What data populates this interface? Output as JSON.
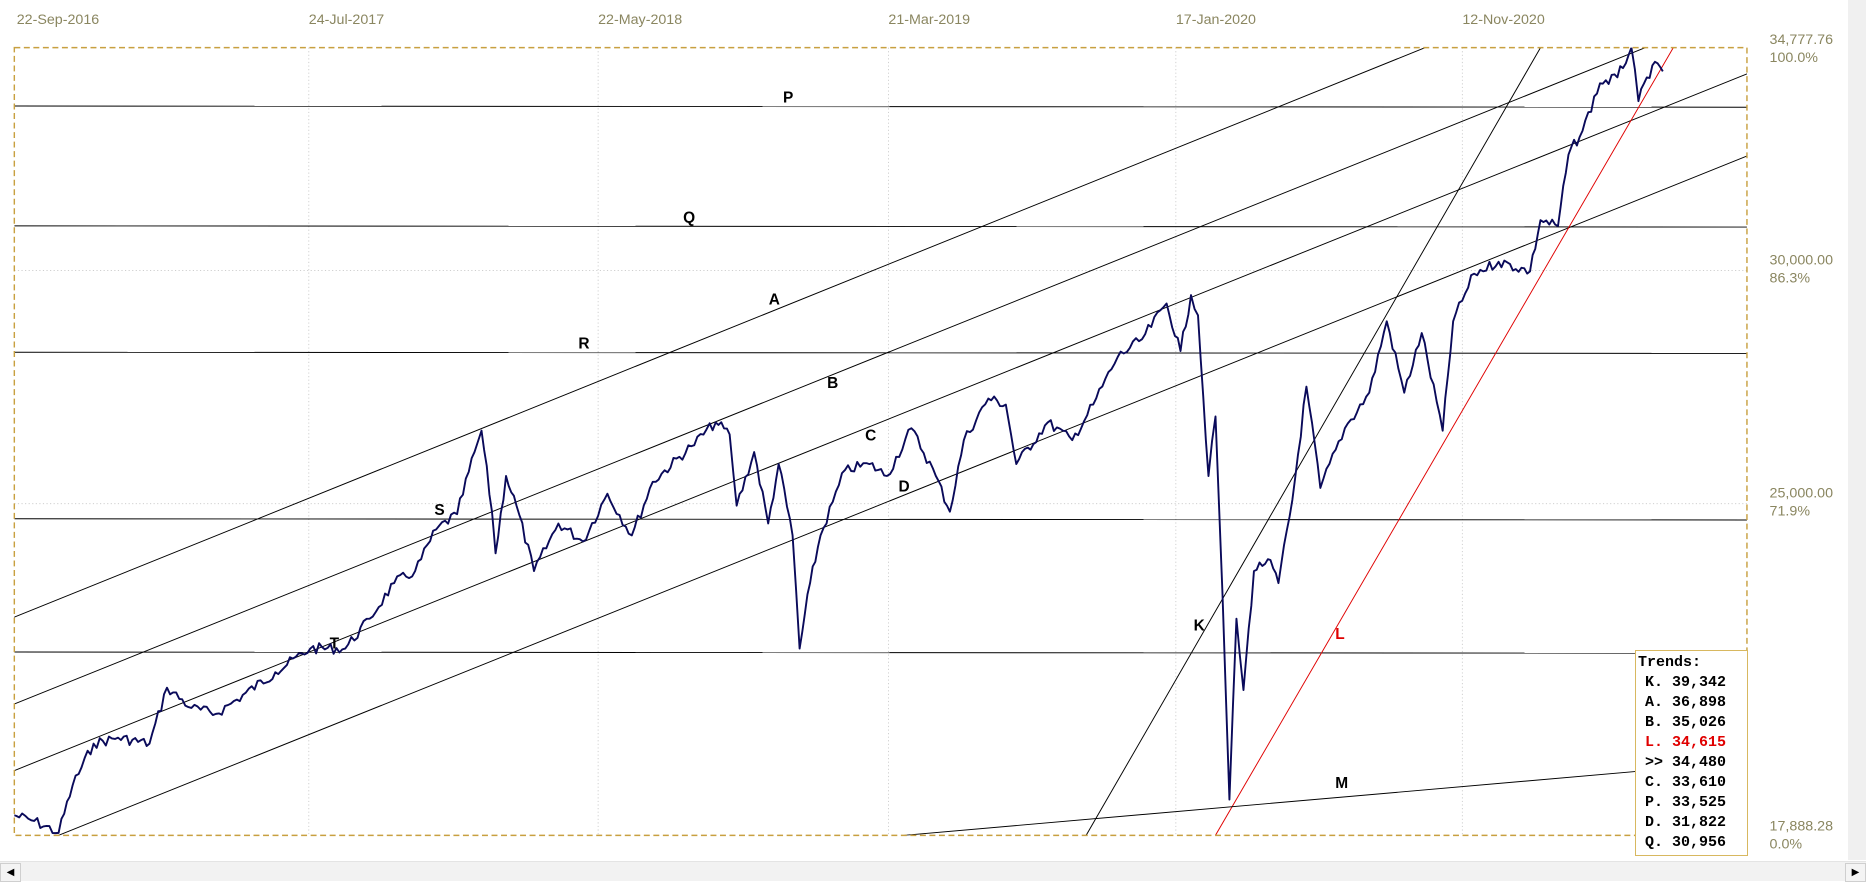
{
  "colors": {
    "price": "#0a0a5a",
    "line": "#000000",
    "trend_l": "#e00000",
    "frame": "#c8a040",
    "axis_text": "#8a8660"
  },
  "chart_data": {
    "type": "line",
    "title": "",
    "x_ticks": [
      "22-Sep-2016",
      "24-Jul-2017",
      "22-May-2018",
      "21-Mar-2019",
      "17-Jan-2020",
      "12-Nov-2020"
    ],
    "y_axis": [
      {
        "value": 34777.76,
        "label": "34,777.76",
        "pct": "100.0%"
      },
      {
        "value": 30000,
        "label": "30,000.00",
        "pct": "86.3%",
        "grid": true
      },
      {
        "value": 25000,
        "label": "25,000.00",
        "pct": "71.9%",
        "grid": true
      },
      {
        "value": 17888.28,
        "label": "17,888.28",
        "pct": "0.0%"
      }
    ],
    "ylim": [
      17888.28,
      34777.76
    ],
    "series": [
      {
        "name": "price",
        "points": [
          [
            2016.72,
            18324
          ],
          [
            2016.78,
            18196
          ],
          [
            2016.85,
            17941
          ],
          [
            2016.89,
            18962
          ],
          [
            2016.95,
            19855
          ],
          [
            2017.02,
            19982
          ],
          [
            2017.11,
            19855
          ],
          [
            2017.16,
            21054
          ],
          [
            2017.23,
            20620
          ],
          [
            2017.3,
            20492
          ],
          [
            2017.36,
            20799
          ],
          [
            2017.47,
            21385
          ],
          [
            2017.57,
            21895
          ],
          [
            2017.67,
            21895
          ],
          [
            2017.74,
            22533
          ],
          [
            2017.81,
            23298
          ],
          [
            2017.87,
            23554
          ],
          [
            2017.93,
            24446
          ],
          [
            2017.99,
            24778
          ],
          [
            2018.04,
            26105
          ],
          [
            2018.06,
            26564
          ],
          [
            2018.09,
            24829
          ],
          [
            2018.1,
            23936
          ],
          [
            2018.13,
            25594
          ],
          [
            2018.16,
            24957
          ],
          [
            2018.21,
            23554
          ],
          [
            2018.28,
            24574
          ],
          [
            2018.35,
            24191
          ],
          [
            2018.42,
            25212
          ],
          [
            2018.49,
            24319
          ],
          [
            2018.55,
            25467
          ],
          [
            2018.66,
            26232
          ],
          [
            2018.73,
            26742
          ],
          [
            2018.77,
            26487
          ],
          [
            2018.79,
            24957
          ],
          [
            2018.84,
            26105
          ],
          [
            2018.88,
            24574
          ],
          [
            2018.91,
            25849
          ],
          [
            2018.95,
            24319
          ],
          [
            2018.97,
            21895
          ],
          [
            2019.0,
            23298
          ],
          [
            2019.03,
            24319
          ],
          [
            2019.1,
            25722
          ],
          [
            2019.17,
            25849
          ],
          [
            2019.22,
            25594
          ],
          [
            2019.29,
            26615
          ],
          [
            2019.36,
            25594
          ],
          [
            2019.4,
            24829
          ],
          [
            2019.44,
            26360
          ],
          [
            2019.51,
            27253
          ],
          [
            2019.56,
            27125
          ],
          [
            2019.59,
            25849
          ],
          [
            2019.68,
            26742
          ],
          [
            2019.75,
            26360
          ],
          [
            2019.81,
            27125
          ],
          [
            2019.88,
            28145
          ],
          [
            2019.95,
            28528
          ],
          [
            2020.02,
            29293
          ],
          [
            2020.06,
            28273
          ],
          [
            2020.09,
            29472
          ],
          [
            2020.11,
            29038
          ],
          [
            2020.14,
            25594
          ],
          [
            2020.16,
            26870
          ],
          [
            2020.18,
            23043
          ],
          [
            2020.2,
            18656
          ],
          [
            2020.22,
            22533
          ],
          [
            2020.24,
            21003
          ],
          [
            2020.27,
            23554
          ],
          [
            2020.31,
            23809
          ],
          [
            2020.34,
            23298
          ],
          [
            2020.38,
            25084
          ],
          [
            2020.42,
            27508
          ],
          [
            2020.46,
            25339
          ],
          [
            2020.53,
            26615
          ],
          [
            2020.6,
            27380
          ],
          [
            2020.65,
            28911
          ],
          [
            2020.7,
            27380
          ],
          [
            2020.75,
            28656
          ],
          [
            2020.81,
            26564
          ],
          [
            2020.84,
            28911
          ],
          [
            2020.9,
            29931
          ],
          [
            2020.97,
            30186
          ],
          [
            2021.06,
            29982
          ],
          [
            2021.09,
            31079
          ],
          [
            2021.14,
            30951
          ],
          [
            2021.17,
            32482
          ],
          [
            2021.21,
            32992
          ],
          [
            2021.26,
            34013
          ],
          [
            2021.31,
            34140
          ],
          [
            2021.35,
            34778
          ],
          [
            2021.37,
            33630
          ],
          [
            2021.41,
            34395
          ],
          [
            2021.44,
            34268
          ]
        ]
      }
    ],
    "horizontal_lines": [
      {
        "name": "P",
        "value": 33525
      },
      {
        "name": "Q",
        "value": 30956
      },
      {
        "name": "R",
        "value": 28247
      },
      {
        "name": "S",
        "value": 24676
      },
      {
        "name": "T",
        "value": 21819
      }
    ],
    "trend_lines": [
      {
        "name": "A",
        "from": [
          2016.72,
          22558
        ],
        "to": [
          2020.76,
          34778
        ]
      },
      {
        "name": "B",
        "from": [
          2016.72,
          20696
        ],
        "to": [
          2021.39,
          34778
        ]
      },
      {
        "name": "C",
        "from": [
          2016.72,
          19268
        ],
        "to": [
          2021.69,
          34242
        ]
      },
      {
        "name": "D",
        "from": [
          2016.85,
          17890
        ],
        "to": [
          2021.69,
          32482
        ]
      },
      {
        "name": "K",
        "from": [
          2019.79,
          17890
        ],
        "to": [
          2021.09,
          34778
        ]
      },
      {
        "name": "L",
        "from": [
          2020.16,
          17890
        ],
        "to": [
          2021.47,
          34778
        ],
        "color": "red"
      },
      {
        "name": "M",
        "from": [
          2019.27,
          17890
        ],
        "to": [
          2021.69,
          19472
        ]
      }
    ]
  },
  "trends_box": {
    "title": "Trends:",
    "rows": [
      {
        "label": "K. 39,342"
      },
      {
        "label": "A. 36,898"
      },
      {
        "label": "B. 35,026"
      },
      {
        "label": "L. 34,615",
        "highlight": true
      },
      {
        "label": ">> 34,480"
      },
      {
        "label": "C. 33,610"
      },
      {
        "label": "P. 33,525"
      },
      {
        "label": "D. 31,822"
      },
      {
        "label": "Q. 30,956"
      }
    ]
  },
  "scrollbar": {
    "left_icon": "arrow-left-icon",
    "right_icon": "arrow-right-icon",
    "left_glyph": "◀",
    "right_glyph": "▶"
  }
}
